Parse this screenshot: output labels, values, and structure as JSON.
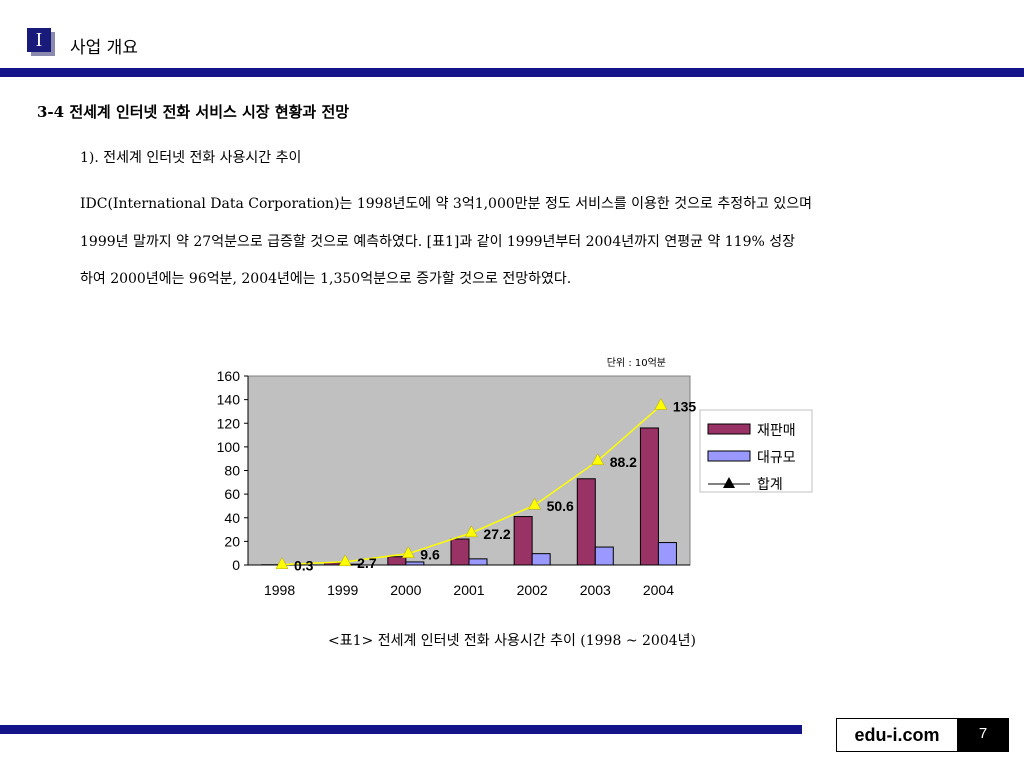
{
  "header": {
    "section_numeral": "I",
    "title": "사업 개요"
  },
  "section_heading": "3-4 전세계 인터넷 전화 서비스 시장 현황과 전망",
  "subheading": "1). 전세계 인터넷 전화 사용시간 추이",
  "paragraph_lines": [
    "IDC(International Data Corporation)는 1998년도에 약 3억1,000만분 정도 서비스를 이용한 것으로 추정하고 있으며",
    "1999년 말까지 약 27억분으로 급증할 것으로 예측하였다. [표1]과 같이 1999년부터 2004년까지 연평균 약 119% 성장",
    "하여 2000년에는 96억분, 2004년에는 1,350억분으로 증가할 것으로 전망하였다."
  ],
  "chart_data": {
    "type": "bar",
    "unit_note": "단위 : 10억분",
    "categories": [
      "1998",
      "1999",
      "2000",
      "2001",
      "2002",
      "2003",
      "2004"
    ],
    "ylim": [
      0,
      160
    ],
    "yticks": [
      0,
      20,
      40,
      60,
      80,
      100,
      120,
      140,
      160
    ],
    "series": [
      {
        "name": "재판매",
        "type": "bar",
        "color": "#993366",
        "values": [
          0.2,
          2,
          7,
          22,
          41,
          73,
          116
        ]
      },
      {
        "name": "대규모",
        "type": "bar",
        "color": "#9999ff",
        "values": [
          0.1,
          0.7,
          2.6,
          5.2,
          9.6,
          15.2,
          19
        ]
      },
      {
        "name": "합계",
        "type": "line",
        "color": "#ffff00",
        "marker": "triangle",
        "values": [
          0.3,
          2.7,
          9.6,
          27.2,
          50.6,
          88.2,
          135
        ],
        "data_labels": [
          "0.3",
          "2.7",
          "9.6",
          "27.2",
          "50.6",
          "88.2",
          "135"
        ]
      }
    ],
    "plot_background": "#c0c0c0",
    "legend_position": "right",
    "grid": false
  },
  "caption": "<표1> 전세계 인터넷 전화 사용시간 추이 (1998 ~ 2004년)",
  "footer": {
    "brand": "edu-i.com",
    "page_number": "7"
  }
}
